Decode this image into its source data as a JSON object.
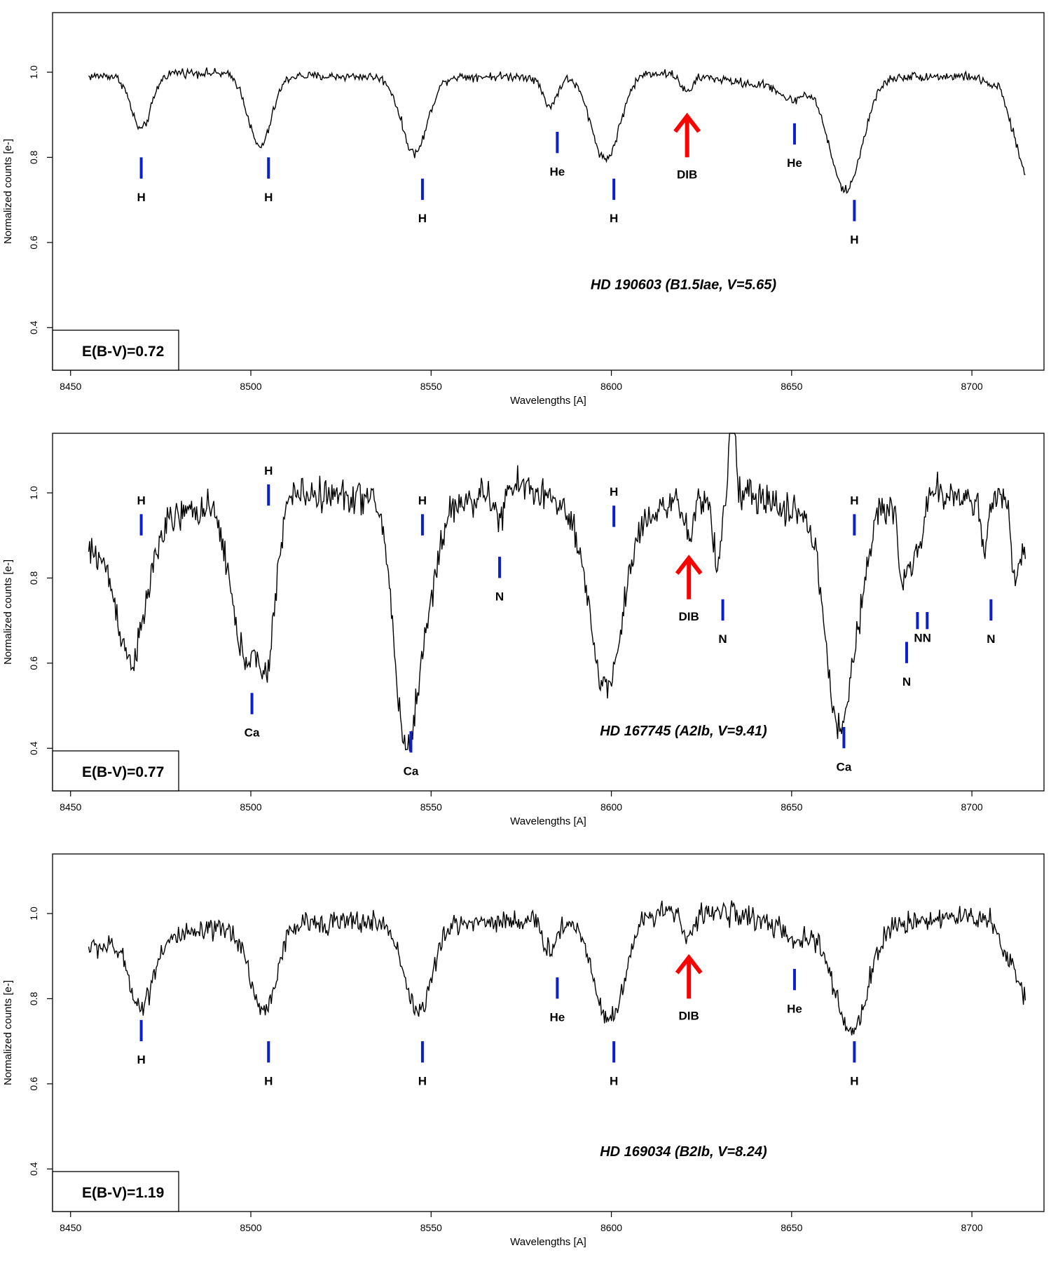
{
  "colors": {
    "spectrum": "#000000",
    "line_marker": "#0b1fd1",
    "dib_arrow": "#ff0000"
  },
  "chart_data": [
    {
      "type": "line",
      "title": "HD 190603 (B1.5Iae, V=5.65)",
      "annotation": "E(B-V)=0.72",
      "xlabel": "Wavelengths [A]",
      "ylabel": "Normalized counts [e-]",
      "xlim": [
        8445,
        8720
      ],
      "ylim": [
        0.3,
        1.14
      ],
      "xticks": [
        "8450",
        "8500",
        "8550",
        "8600",
        "8650",
        "8700"
      ],
      "yticks": [
        "0.4",
        "0.6",
        "0.8",
        "1.0"
      ],
      "wavelength_range": [
        8455,
        8715
      ],
      "noise": 0.008,
      "continuum": [
        [
          8455,
          0.99
        ],
        [
          8480,
          1.0
        ],
        [
          8520,
          0.99
        ],
        [
          8560,
          0.99
        ],
        [
          8580,
          0.99
        ],
        [
          8610,
          1.0
        ],
        [
          8625,
          0.99
        ],
        [
          8640,
          0.97
        ],
        [
          8680,
          0.99
        ],
        [
          8700,
          0.99
        ],
        [
          8708,
          0.96
        ],
        [
          8715,
          0.75
        ]
      ],
      "absorptions": [
        {
          "center": 8469.6,
          "depth": 0.13,
          "width": 2.8
        },
        {
          "center": 8502.5,
          "depth": 0.17,
          "width": 3.2
        },
        {
          "center": 8545.4,
          "depth": 0.18,
          "width": 3.6
        },
        {
          "center": 8583.0,
          "depth": 0.07,
          "width": 2.0
        },
        {
          "center": 8598.4,
          "depth": 0.2,
          "width": 4.0
        },
        {
          "center": 8621.0,
          "depth": 0.04,
          "width": 1.6
        },
        {
          "center": 8650.0,
          "depth": 0.04,
          "width": 3.0
        },
        {
          "center": 8665.0,
          "depth": 0.26,
          "width": 4.5
        }
      ],
      "emissions": [],
      "line_markers": [
        {
          "x": 8469.6,
          "y": [
            0.75,
            0.8
          ],
          "label": "H"
        },
        {
          "x": 8504.9,
          "y": [
            0.75,
            0.8
          ],
          "label": "H"
        },
        {
          "x": 8547.6,
          "y": [
            0.7,
            0.75
          ],
          "label": "H"
        },
        {
          "x": 8585.0,
          "y": [
            0.81,
            0.86
          ],
          "label": "He"
        },
        {
          "x": 8600.7,
          "y": [
            0.7,
            0.75
          ],
          "label": "H"
        },
        {
          "x": 8650.8,
          "y": [
            0.83,
            0.88
          ],
          "label": "He"
        },
        {
          "x": 8667.4,
          "y": [
            0.65,
            0.7
          ],
          "label": "H"
        }
      ],
      "dib": {
        "x": 8621.0,
        "y": [
          0.8,
          0.9
        ],
        "label": "DIB"
      }
    },
    {
      "type": "line",
      "title": "HD 167745 (A2Ib, V=9.41)",
      "annotation": "E(B-V)=0.77",
      "xlabel": "Wavelengths [A]",
      "ylabel": "Normalized counts [e-]",
      "xlim": [
        8445,
        8720
      ],
      "ylim": [
        0.3,
        1.14
      ],
      "xticks": [
        "8450",
        "8500",
        "8550",
        "8600",
        "8650",
        "8700"
      ],
      "yticks": [
        "0.4",
        "0.6",
        "0.8",
        "1.0"
      ],
      "wavelength_range": [
        8455,
        8715
      ],
      "noise": 0.03,
      "continuum": [
        [
          8455,
          0.86
        ],
        [
          8470,
          0.92
        ],
        [
          8485,
          0.96
        ],
        [
          8510,
          1.0
        ],
        [
          8530,
          0.99
        ],
        [
          8560,
          0.98
        ],
        [
          8575,
          1.02
        ],
        [
          8590,
          0.96
        ],
        [
          8600,
          0.94
        ],
        [
          8620,
          0.98
        ],
        [
          8635,
          1.0
        ],
        [
          8650,
          0.96
        ],
        [
          8660,
          0.93
        ],
        [
          8670,
          0.95
        ],
        [
          8690,
          1.0
        ],
        [
          8710,
          0.98
        ],
        [
          8715,
          0.86
        ]
      ],
      "absorptions": [
        {
          "center": 8467.0,
          "depth": 0.3,
          "width": 4.0
        },
        {
          "center": 8498.0,
          "depth": 0.35,
          "width": 3.5
        },
        {
          "center": 8504.5,
          "depth": 0.35,
          "width": 2.5
        },
        {
          "center": 8542.5,
          "depth": 0.5,
          "width": 3.0
        },
        {
          "center": 8548.0,
          "depth": 0.25,
          "width": 3.5
        },
        {
          "center": 8569.0,
          "depth": 0.07,
          "width": 1.2
        },
        {
          "center": 8598.5,
          "depth": 0.4,
          "width": 4.5
        },
        {
          "center": 8621.5,
          "depth": 0.08,
          "width": 1.5
        },
        {
          "center": 8629.4,
          "depth": 0.17,
          "width": 1.0
        },
        {
          "center": 8662.0,
          "depth": 0.4,
          "width": 3.0
        },
        {
          "center": 8667.0,
          "depth": 0.25,
          "width": 3.0
        },
        {
          "center": 8680.7,
          "depth": 0.2,
          "width": 1.0
        },
        {
          "center": 8683.4,
          "depth": 0.15,
          "width": 1.0
        },
        {
          "center": 8686.0,
          "depth": 0.1,
          "width": 1.0
        },
        {
          "center": 8703.5,
          "depth": 0.13,
          "width": 1.0
        },
        {
          "center": 8712.0,
          "depth": 0.15,
          "width": 1.0
        }
      ],
      "emissions": [
        {
          "center": 8633.5,
          "height": 0.35,
          "width": 0.6
        }
      ],
      "line_markers": [
        {
          "x": 8469.6,
          "y": [
            0.9,
            0.95
          ],
          "label": "H",
          "label_pos": "above"
        },
        {
          "x": 8504.9,
          "y": [
            0.97,
            1.02
          ],
          "label": "H",
          "label_pos": "above"
        },
        {
          "x": 8547.6,
          "y": [
            0.9,
            0.95
          ],
          "label": "H",
          "label_pos": "above"
        },
        {
          "x": 8600.7,
          "y": [
            0.92,
            0.97
          ],
          "label": "H",
          "label_pos": "above"
        },
        {
          "x": 8667.4,
          "y": [
            0.9,
            0.95
          ],
          "label": "H",
          "label_pos": "above"
        },
        {
          "x": 8500.3,
          "y": [
            0.48,
            0.53
          ],
          "label": "Ca"
        },
        {
          "x": 8544.4,
          "y": [
            0.39,
            0.44
          ],
          "label": "Ca"
        },
        {
          "x": 8664.5,
          "y": [
            0.4,
            0.45
          ],
          "label": "Ca"
        },
        {
          "x": 8569.0,
          "y": [
            0.8,
            0.85
          ],
          "label": "N"
        },
        {
          "x": 8630.9,
          "y": [
            0.7,
            0.75
          ],
          "label": "N"
        },
        {
          "x": 8681.9,
          "y": [
            0.6,
            0.65
          ],
          "label": "N"
        },
        {
          "x": 8684.9,
          "y": [
            0.68,
            0.72
          ],
          "label": "N"
        },
        {
          "x": 8687.6,
          "y": [
            0.68,
            0.72
          ],
          "label": "N"
        },
        {
          "x": 8705.3,
          "y": [
            0.7,
            0.75
          ],
          "label": "N"
        }
      ],
      "combined_label": {
        "x": 8686.3,
        "y": 0.66,
        "text": "NN"
      },
      "dib": {
        "x": 8621.5,
        "y": [
          0.75,
          0.85
        ],
        "label": "DIB"
      }
    },
    {
      "type": "line",
      "title": "HD 169034 (B2Ib, V=8.24)",
      "annotation": "E(B-V)=1.19",
      "xlabel": "Wavelengths [A]",
      "ylabel": "Normalized counts [e-]",
      "xlim": [
        8445,
        8720
      ],
      "ylim": [
        0.3,
        1.14
      ],
      "xticks": [
        "8450",
        "8500",
        "8550",
        "8600",
        "8650",
        "8700"
      ],
      "yticks": [
        "0.4",
        "0.6",
        "0.8",
        "1.0"
      ],
      "wavelength_range": [
        8455,
        8715
      ],
      "noise": 0.02,
      "continuum": [
        [
          8455,
          0.92
        ],
        [
          8470,
          0.93
        ],
        [
          8490,
          0.96
        ],
        [
          8520,
          0.98
        ],
        [
          8560,
          0.98
        ],
        [
          8600,
          0.99
        ],
        [
          8615,
          1.01
        ],
        [
          8635,
          1.0
        ],
        [
          8650,
          0.96
        ],
        [
          8665,
          0.96
        ],
        [
          8690,
          0.99
        ],
        [
          8705,
          0.99
        ],
        [
          8715,
          0.8
        ]
      ],
      "absorptions": [
        {
          "center": 8469.6,
          "depth": 0.15,
          "width": 3.0
        },
        {
          "center": 8503.5,
          "depth": 0.2,
          "width": 3.5
        },
        {
          "center": 8546.5,
          "depth": 0.21,
          "width": 3.8
        },
        {
          "center": 8583.0,
          "depth": 0.07,
          "width": 2.0
        },
        {
          "center": 8599.5,
          "depth": 0.24,
          "width": 4.2
        },
        {
          "center": 8621.5,
          "depth": 0.06,
          "width": 1.8
        },
        {
          "center": 8651.0,
          "depth": 0.03,
          "width": 2.5
        },
        {
          "center": 8666.5,
          "depth": 0.24,
          "width": 4.5
        }
      ],
      "emissions": [],
      "line_markers": [
        {
          "x": 8469.6,
          "y": [
            0.7,
            0.75
          ],
          "label": "H"
        },
        {
          "x": 8504.9,
          "y": [
            0.65,
            0.7
          ],
          "label": "H"
        },
        {
          "x": 8547.6,
          "y": [
            0.65,
            0.7
          ],
          "label": "H"
        },
        {
          "x": 8585.0,
          "y": [
            0.8,
            0.85
          ],
          "label": "He"
        },
        {
          "x": 8600.7,
          "y": [
            0.65,
            0.7
          ],
          "label": "H"
        },
        {
          "x": 8650.8,
          "y": [
            0.82,
            0.87
          ],
          "label": "He"
        },
        {
          "x": 8667.4,
          "y": [
            0.65,
            0.7
          ],
          "label": "H"
        }
      ],
      "dib": {
        "x": 8621.5,
        "y": [
          0.8,
          0.9
        ],
        "label": "DIB"
      }
    }
  ]
}
